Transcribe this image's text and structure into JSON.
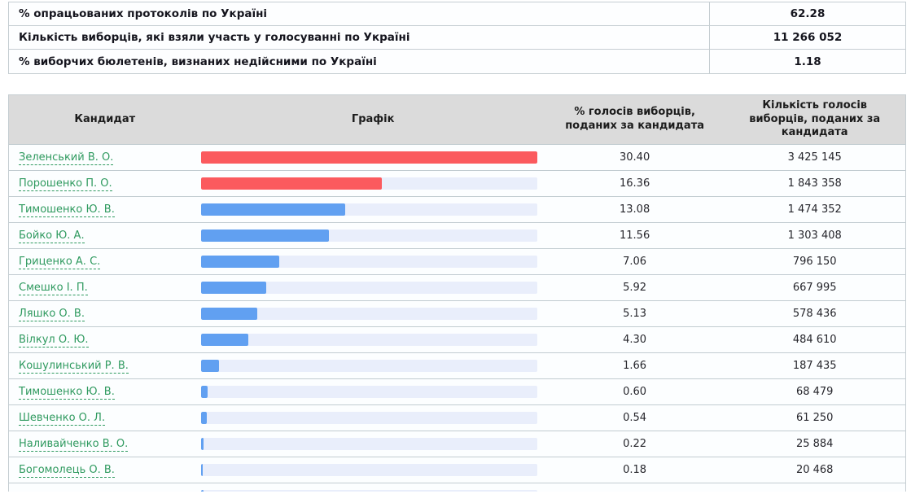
{
  "summary": {
    "rows": [
      {
        "label": "% опрацьованих протоколів по Україні",
        "value": "62.28"
      },
      {
        "label": "Кількість виборців, які взяли участь у голосуванні по Україні",
        "value": "11 266 052"
      },
      {
        "label": "% виборчих бюлетенів, визнаних недійсними по Україні",
        "value": "1.18"
      }
    ]
  },
  "results_table": {
    "headers": {
      "candidate": "Кандидат",
      "chart": "Графік",
      "percent": "% голосів виборців, поданих за кандидата",
      "votes": "Кількість голосів виборців, поданих за кандидата"
    },
    "rows": [
      {
        "candidate": "Зеленський В. О.",
        "percent": "30.40",
        "votes": "3 425 145",
        "bar_color": "red"
      },
      {
        "candidate": "Порошенко П. О.",
        "percent": "16.36",
        "votes": "1 843 358",
        "bar_color": "red"
      },
      {
        "candidate": "Тимошенко Ю. В.",
        "percent": "13.08",
        "votes": "1 474 352",
        "bar_color": "blue"
      },
      {
        "candidate": "Бойко Ю. А.",
        "percent": "11.56",
        "votes": "1 303 408",
        "bar_color": "blue"
      },
      {
        "candidate": "Гриценко А. С.",
        "percent": "7.06",
        "votes": "796 150",
        "bar_color": "blue"
      },
      {
        "candidate": "Смешко І. П.",
        "percent": "5.92",
        "votes": "667 995",
        "bar_color": "blue"
      },
      {
        "candidate": "Ляшко О. В.",
        "percent": "5.13",
        "votes": "578 436",
        "bar_color": "blue"
      },
      {
        "candidate": "Вілкул О. Ю.",
        "percent": "4.30",
        "votes": "484 610",
        "bar_color": "blue"
      },
      {
        "candidate": "Кошулинський Р. В.",
        "percent": "1.66",
        "votes": "187 435",
        "bar_color": "blue"
      },
      {
        "candidate": "Тимошенко Ю. В.",
        "percent": "0.60",
        "votes": "68 479",
        "bar_color": "blue"
      },
      {
        "candidate": "Шевченко О. Л.",
        "percent": "0.54",
        "votes": "61 250",
        "bar_color": "blue"
      },
      {
        "candidate": "Наливайченко В. О.",
        "percent": "0.22",
        "votes": "25 884",
        "bar_color": "blue"
      },
      {
        "candidate": "Богомолець О. В.",
        "percent": "0.18",
        "votes": "20 468",
        "bar_color": "blue"
      }
    ],
    "partial_next_row_visible": true
  },
  "colors": {
    "bar_red": "#fb5a5e",
    "bar_blue": "#61a0f1",
    "bar_track": "#e9eefb",
    "link_green": "#2f9a5f",
    "header_bg": "#dbdbdb"
  },
  "chart_data": {
    "type": "bar",
    "orientation": "horizontal",
    "title": "Графік",
    "categories": [
      "Зеленський В. О.",
      "Порошенко П. О.",
      "Тимошенко Ю. В.",
      "Бойко Ю. А.",
      "Гриценко А. С.",
      "Смешко І. П.",
      "Ляшко О. В.",
      "Вілкул О. Ю.",
      "Кошулинський Р. В.",
      "Тимошенко Ю. В.",
      "Шевченко О. Л.",
      "Наливайченко В. О.",
      "Богомолець О. В."
    ],
    "values": [
      30.4,
      16.36,
      13.08,
      11.56,
      7.06,
      5.92,
      5.13,
      4.3,
      1.66,
      0.6,
      0.54,
      0.22,
      0.18
    ],
    "votes": [
      3425145,
      1843358,
      1474352,
      1303408,
      796150,
      667995,
      578436,
      484610,
      187435,
      68479,
      61250,
      25884,
      20468
    ],
    "xlabel": "% голосів виборців, поданих за кандидата",
    "ylabel": "Кандидат",
    "xlim": [
      0,
      30.4
    ],
    "grid": false,
    "legend": false
  }
}
